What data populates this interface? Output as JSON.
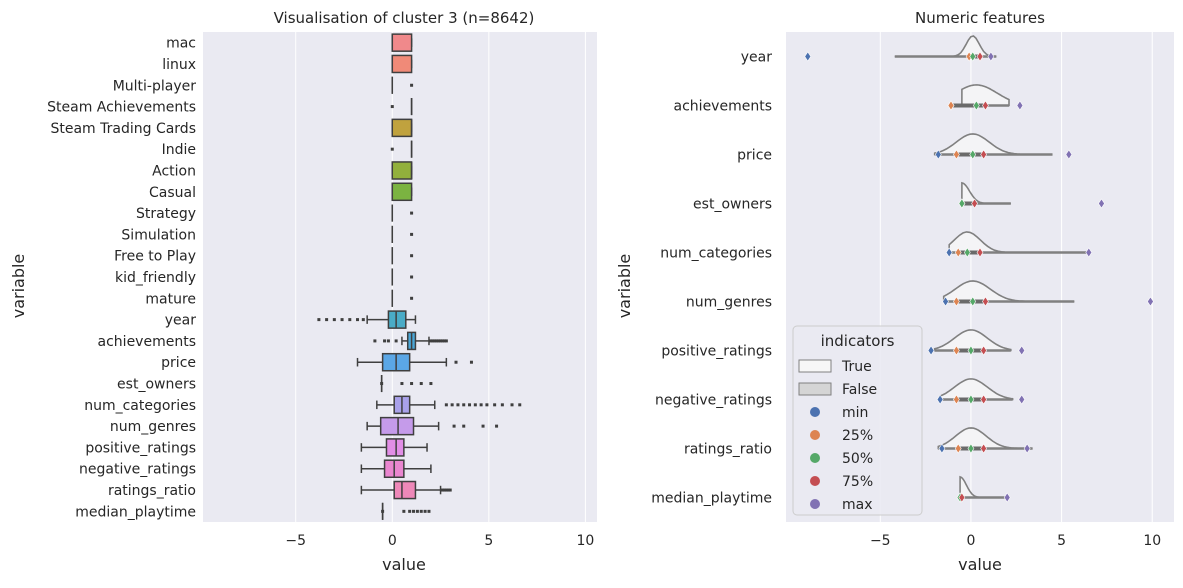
{
  "chart_data": [
    {
      "type": "box",
      "title": "Visualisation of cluster 3 (n=8642)",
      "xlabel": "value",
      "ylabel": "variable",
      "xlim": [
        -9.8,
        10.6
      ],
      "xticks": [
        -5,
        0,
        5,
        10
      ],
      "xtick_labels": [
        "−5",
        "0",
        "5",
        "10"
      ],
      "grid": true,
      "categories": [
        "mac",
        "linux",
        "Multi-player",
        "Steam Achievements",
        "Steam Trading Cards",
        "Indie",
        "Action",
        "Casual",
        "Strategy",
        "Simulation",
        "Free to Play",
        "kid_friendly",
        "mature",
        "year",
        "achievements",
        "price",
        "est_owners",
        "num_categories",
        "num_genres",
        "positive_ratings",
        "negative_ratings",
        "ratings_ratio",
        "median_playtime"
      ],
      "boxes": [
        {
          "q1": 0,
          "med": 0,
          "q3": 1,
          "wlo": 0,
          "whi": 1,
          "fliers": [],
          "color": "#f0898b"
        },
        {
          "q1": 0,
          "med": 0,
          "q3": 1,
          "wlo": 0,
          "whi": 1,
          "fliers": [],
          "color": "#f08a78"
        },
        {
          "q1": 0,
          "med": 0,
          "q3": 0,
          "wlo": 0,
          "whi": 0,
          "fliers": [
            1
          ],
          "color": "#dba66a"
        },
        {
          "q1": 1,
          "med": 1,
          "q3": 1,
          "wlo": 1,
          "whi": 1,
          "fliers": [
            0
          ],
          "color": "#c9a24a"
        },
        {
          "q1": 0,
          "med": 1,
          "q3": 1,
          "wlo": 0,
          "whi": 1,
          "fliers": [],
          "color": "#c0a23e"
        },
        {
          "q1": 1,
          "med": 1,
          "q3": 1,
          "wlo": 1,
          "whi": 1,
          "fliers": [
            0
          ],
          "color": "#a6ab3c"
        },
        {
          "q1": 0,
          "med": 1,
          "q3": 1,
          "wlo": 0,
          "whi": 1,
          "fliers": [],
          "color": "#92b03c"
        },
        {
          "q1": 0,
          "med": 0,
          "q3": 1,
          "wlo": 0,
          "whi": 1,
          "fliers": [],
          "color": "#7bb341"
        },
        {
          "q1": 0,
          "med": 0,
          "q3": 0,
          "wlo": 0,
          "whi": 0,
          "fliers": [
            1
          ],
          "color": "#55b367"
        },
        {
          "q1": 0,
          "med": 0,
          "q3": 0,
          "wlo": 0,
          "whi": 0,
          "fliers": [
            1
          ],
          "color": "#4bb389"
        },
        {
          "q1": 0,
          "med": 0,
          "q3": 0,
          "wlo": 0,
          "whi": 0,
          "fliers": [
            1
          ],
          "color": "#48b19f"
        },
        {
          "q1": 0,
          "med": 0,
          "q3": 0,
          "wlo": 0,
          "whi": 0,
          "fliers": [
            1
          ],
          "color": "#48aeb1"
        },
        {
          "q1": 0,
          "med": 0,
          "q3": 0,
          "wlo": 0,
          "whi": 0,
          "fliers": [
            1
          ],
          "color": "#4aabbb"
        },
        {
          "q1": -0.2,
          "med": 0.2,
          "q3": 0.7,
          "wlo": -1.3,
          "whi": 1.2,
          "fliers": [
            -3.8,
            -3.4,
            -3.0,
            -2.6,
            -2.2,
            -1.8,
            -1.5
          ],
          "color": "#4aabc6"
        },
        {
          "q1": 0.8,
          "med": 1.0,
          "q3": 1.2,
          "wlo": 0.5,
          "whi": 1.9,
          "fliers": [
            -0.9,
            -0.4,
            -0.2,
            0.2,
            2.0,
            2.1,
            2.2,
            2.3,
            2.4,
            2.5,
            2.6,
            2.7,
            2.8
          ],
          "color": "#4aa7d8"
        },
        {
          "q1": -0.5,
          "med": 0.2,
          "q3": 0.9,
          "wlo": -1.8,
          "whi": 2.8,
          "fliers": [
            3.3,
            4.1
          ],
          "color": "#5ba7e6"
        },
        {
          "q1": -0.55,
          "med": -0.55,
          "q3": -0.55,
          "wlo": -0.55,
          "whi": -0.55,
          "fliers": [
            -0.55,
            0.5,
            1.0,
            1.5,
            2.0
          ],
          "color": "#8fa4e6"
        },
        {
          "q1": 0.1,
          "med": 0.5,
          "q3": 0.9,
          "wlo": -0.8,
          "whi": 2.2,
          "fliers": [
            2.8,
            3.1,
            3.4,
            3.7,
            4.0,
            4.3,
            4.6,
            4.9,
            5.3,
            5.7,
            6.2,
            6.6
          ],
          "color": "#a9a1ea"
        },
        {
          "q1": -0.6,
          "med": 0.3,
          "q3": 1.1,
          "wlo": -1.3,
          "whi": 2.4,
          "fliers": [
            3.2,
            3.7,
            4.7,
            5.4
          ],
          "color": "#c59bea"
        },
        {
          "q1": -0.3,
          "med": 0.2,
          "q3": 0.6,
          "wlo": -1.6,
          "whi": 1.8,
          "fliers": [],
          "color": "#e28ee6"
        },
        {
          "q1": -0.4,
          "med": 0.1,
          "q3": 0.6,
          "wlo": -1.6,
          "whi": 2.0,
          "fliers": [],
          "color": "#ea86d0"
        },
        {
          "q1": 0.1,
          "med": 0.5,
          "q3": 1.2,
          "wlo": -1.6,
          "whi": 2.5,
          "fliers": [
            2.6,
            2.7,
            2.8,
            2.9,
            3.0
          ],
          "color": "#ee88b8"
        },
        {
          "q1": -0.5,
          "med": -0.5,
          "q3": -0.5,
          "wlo": -0.5,
          "whi": -0.5,
          "fliers": [
            -0.5,
            0.6,
            0.9,
            1.1,
            1.3,
            1.5,
            1.7,
            1.9
          ],
          "color": "#f08aa3"
        }
      ]
    },
    {
      "type": "violin",
      "title": "Numeric features",
      "xlabel": "value",
      "ylabel": "variable",
      "xlim": [
        -10.2,
        11.2
      ],
      "xticks": [
        -5,
        0,
        5,
        10
      ],
      "xtick_labels": [
        "−5",
        "0",
        "5",
        "10"
      ],
      "grid": true,
      "categories": [
        "year",
        "achievements",
        "price",
        "est_owners",
        "num_categories",
        "num_genres",
        "positive_ratings",
        "negative_ratings",
        "ratings_ratio",
        "median_playtime"
      ],
      "violin_ranges": [
        [
          -4.2,
          1.4
        ],
        [
          -0.5,
          2.1
        ],
        [
          -2.0,
          4.5
        ],
        [
          -0.5,
          2.2
        ],
        [
          -1.2,
          6.5
        ],
        [
          -1.5,
          5.7
        ],
        [
          -2.0,
          2.2
        ],
        [
          -1.7,
          2.3
        ],
        [
          -1.8,
          3.4
        ],
        [
          -0.6,
          2.0
        ]
      ],
      "points": [
        {
          "min": -9.0,
          "q25": -0.1,
          "q50": 0.1,
          "q75": 0.5,
          "max": 1.1
        },
        {
          "min": -1.1,
          "q25": -1.1,
          "q50": 0.3,
          "q75": 0.8,
          "max": 2.7
        },
        {
          "min": -1.8,
          "q25": -0.8,
          "q50": 0.1,
          "q75": 0.7,
          "max": 5.4
        },
        {
          "min": -0.5,
          "q25": -0.5,
          "q50": -0.5,
          "q75": 0.2,
          "max": 7.2
        },
        {
          "min": -1.2,
          "q25": -0.7,
          "q50": -0.2,
          "q75": 0.5,
          "max": 6.5
        },
        {
          "min": -1.4,
          "q25": -0.8,
          "q50": 0.1,
          "q75": 0.8,
          "max": 9.9
        },
        {
          "min": -2.2,
          "q25": -0.8,
          "q50": 0.0,
          "q75": 0.7,
          "max": 2.8
        },
        {
          "min": -1.7,
          "q25": -0.8,
          "q50": 0.0,
          "q75": 0.7,
          "max": 2.8
        },
        {
          "min": -1.6,
          "q25": -0.7,
          "q50": 0.0,
          "q75": 0.7,
          "max": 3.1
        },
        {
          "min": -0.6,
          "q25": -0.6,
          "q50": -0.6,
          "q75": -0.5,
          "max": 2.0
        }
      ],
      "legend": {
        "title": "indicators",
        "placement": "lower-left",
        "entries": [
          {
            "label": "True",
            "kind": "patch",
            "color": "#f7f7f7"
          },
          {
            "label": "False",
            "kind": "patch",
            "color": "#d5d5d5"
          },
          {
            "label": "min",
            "kind": "dot",
            "color": "#4c72b0"
          },
          {
            "label": "25%",
            "kind": "dot",
            "color": "#dd8452"
          },
          {
            "label": "50%",
            "kind": "dot",
            "color": "#55a868"
          },
          {
            "label": "75%",
            "kind": "dot",
            "color": "#c44e52"
          },
          {
            "label": "max",
            "kind": "dot",
            "color": "#8172b3"
          }
        ]
      }
    }
  ]
}
